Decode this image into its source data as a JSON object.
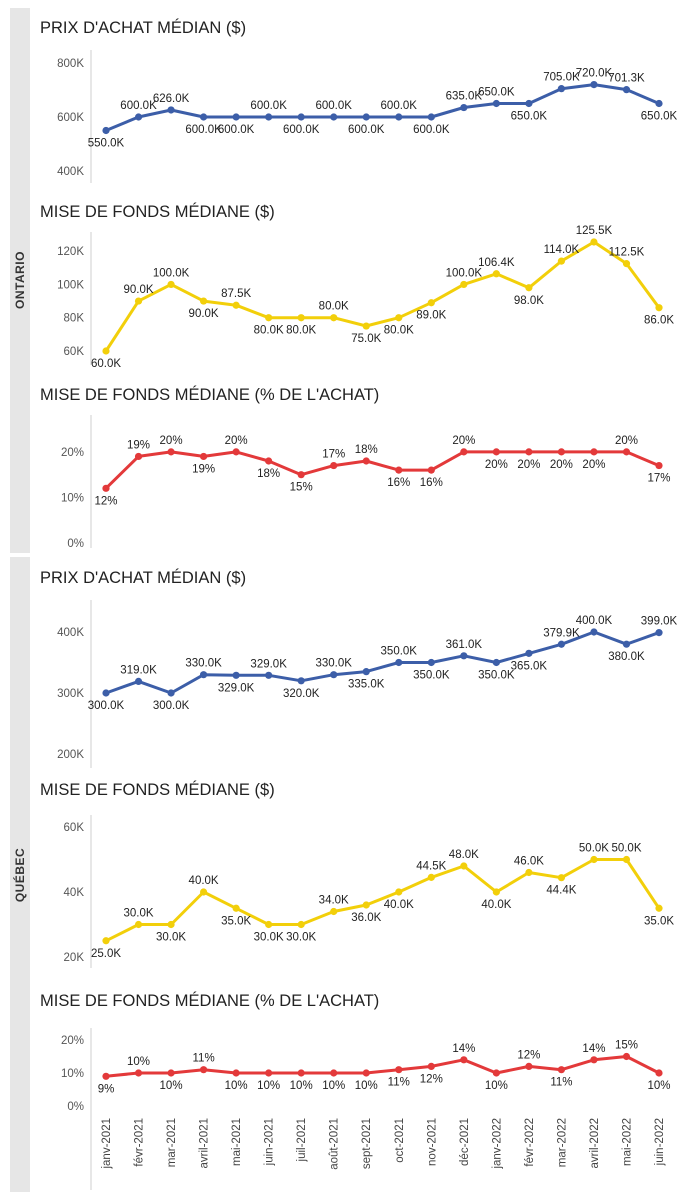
{
  "sections": [
    {
      "name": "ONTARIO"
    },
    {
      "name": "QUÉBEC"
    }
  ],
  "colors": {
    "price": "#3c5ea8",
    "down_amount": "#f2cf0a",
    "down_pct": "#e3393a"
  },
  "chart_data": [
    {
      "type": "line",
      "section": "ONTARIO",
      "title": "PRIX D'ACHAT MÉDIAN ($)",
      "color": "#3c5ea8",
      "x": [
        "janv-2021",
        "févr-2021",
        "mar-2021",
        "avril-2021",
        "mai-2021",
        "juin-2021",
        "juil-2021",
        "août-2021",
        "sept-2021",
        "oct-2021",
        "nov-2021",
        "déc-2021",
        "janv-2022",
        "févr-2022",
        "mar-2022",
        "avril-2022",
        "mai-2022",
        "juin-2022"
      ],
      "values": [
        550,
        600,
        626,
        600,
        600,
        600,
        600,
        600,
        600,
        600,
        600,
        635,
        650,
        650,
        705,
        720,
        701.3,
        650
      ],
      "labels": [
        "550.0K",
        "600.0K",
        "626.0K",
        "600.0K",
        "600.0K",
        "600.0K",
        "600.0K",
        "600.0K",
        "600.0K",
        "600.0K",
        "600.0K",
        "635.0K",
        "650.0K",
        "650.0K",
        "705.0K",
        "720.0K",
        "701.3K",
        "650.0K"
      ],
      "label_pos": [
        "below",
        "above",
        "above",
        "below",
        "below",
        "above",
        "below",
        "above",
        "below",
        "above",
        "below",
        "above",
        "above",
        "below",
        "above",
        "above",
        "above",
        "below"
      ],
      "ylim": [
        400,
        800
      ],
      "yticks": [
        400,
        600,
        800
      ],
      "ytick_labels": [
        "400K",
        "600K",
        "800K"
      ],
      "grid": false
    },
    {
      "type": "line",
      "section": "ONTARIO",
      "title": "MISE DE FONDS MÉDIANE ($)",
      "color": "#f2cf0a",
      "x": [
        "janv-2021",
        "févr-2021",
        "mar-2021",
        "avril-2021",
        "mai-2021",
        "juin-2021",
        "juil-2021",
        "août-2021",
        "sept-2021",
        "oct-2021",
        "nov-2021",
        "déc-2021",
        "janv-2022",
        "févr-2022",
        "mar-2022",
        "avril-2022",
        "mai-2022",
        "juin-2022"
      ],
      "values": [
        60,
        90,
        100,
        90,
        87.5,
        80,
        80,
        80,
        75,
        80,
        89,
        100,
        106.4,
        98,
        114,
        125.5,
        112.5,
        86
      ],
      "labels": [
        "60.0K",
        "90.0K",
        "100.0K",
        "90.0K",
        "87.5K",
        "80.0K",
        "80.0K",
        "80.0K",
        "75.0K",
        "80.0K",
        "89.0K",
        "100.0K",
        "106.4K",
        "98.0K",
        "114.0K",
        "125.5K",
        "112.5K",
        "86.0K"
      ],
      "label_pos": [
        "below",
        "above",
        "above",
        "below",
        "above",
        "below",
        "below",
        "above",
        "below",
        "below",
        "below",
        "above",
        "above",
        "below",
        "above",
        "above",
        "above",
        "below"
      ],
      "ylim": [
        60,
        125.5
      ],
      "yticks": [
        60,
        80,
        100,
        120
      ],
      "ytick_labels": [
        "60K",
        "80K",
        "100K",
        "120K"
      ],
      "grid": false
    },
    {
      "type": "line",
      "section": "ONTARIO",
      "title": "MISE DE FONDS MÉDIANE (% DE L'ACHAT)",
      "color": "#e3393a",
      "x": [
        "janv-2021",
        "févr-2021",
        "mar-2021",
        "avril-2021",
        "mai-2021",
        "juin-2021",
        "juil-2021",
        "août-2021",
        "sept-2021",
        "oct-2021",
        "nov-2021",
        "déc-2021",
        "janv-2022",
        "févr-2022",
        "mar-2022",
        "avril-2022",
        "mai-2022",
        "juin-2022"
      ],
      "values": [
        12,
        19,
        20,
        19,
        20,
        18,
        15,
        17,
        18,
        16,
        16,
        20,
        20,
        20,
        20,
        20,
        20,
        17
      ],
      "labels": [
        "12%",
        "19%",
        "20%",
        "19%",
        "20%",
        "18%",
        "15%",
        "17%",
        "18%",
        "16%",
        "16%",
        "20%",
        "20%",
        "20%",
        "20%",
        "20%",
        "20%",
        "17%"
      ],
      "label_pos": [
        "below",
        "above",
        "above",
        "below",
        "above",
        "below",
        "below",
        "above",
        "above",
        "below",
        "below",
        "above",
        "below",
        "below",
        "below",
        "below",
        "above",
        "below"
      ],
      "ylim": [
        0,
        27
      ],
      "yticks": [
        0,
        10,
        20
      ],
      "ytick_labels": [
        "0%",
        "10%",
        "20%"
      ],
      "grid": false
    },
    {
      "type": "line",
      "section": "QUÉBEC",
      "title": "PRIX D'ACHAT MÉDIAN ($)",
      "color": "#3c5ea8",
      "x": [
        "janv-2021",
        "févr-2021",
        "mar-2021",
        "avril-2021",
        "mai-2021",
        "juin-2021",
        "juil-2021",
        "août-2021",
        "sept-2021",
        "oct-2021",
        "nov-2021",
        "déc-2021",
        "janv-2022",
        "févr-2022",
        "mar-2022",
        "avril-2022",
        "mai-2022",
        "juin-2022"
      ],
      "values": [
        300,
        319,
        300,
        330,
        329,
        329,
        320,
        330,
        335,
        350,
        350,
        361,
        350,
        365,
        379.9,
        400,
        380,
        399
      ],
      "labels": [
        "300.0K",
        "319.0K",
        "300.0K",
        "330.0K",
        "329.0K",
        "329.0K",
        "320.0K",
        "330.0K",
        "335.0K",
        "350.0K",
        "350.0K",
        "361.0K",
        "350.0K",
        "365.0K",
        "379.9K",
        "400.0K",
        "380.0K",
        "399.0K"
      ],
      "label_pos": [
        "below",
        "above",
        "below",
        "above",
        "below",
        "above",
        "below",
        "above",
        "below",
        "above",
        "below",
        "above",
        "below",
        "below",
        "above",
        "above",
        "below",
        "above"
      ],
      "ylim": [
        200,
        400
      ],
      "yticks": [
        200,
        300,
        400
      ],
      "ytick_labels": [
        "200K",
        "300K",
        "400K"
      ],
      "grid": false
    },
    {
      "type": "line",
      "section": "QUÉBEC",
      "title": "MISE DE FONDS MÉDIANE ($)",
      "color": "#f2cf0a",
      "x": [
        "janv-2021",
        "févr-2021",
        "mar-2021",
        "avril-2021",
        "mai-2021",
        "juin-2021",
        "juil-2021",
        "août-2021",
        "sept-2021",
        "oct-2021",
        "nov-2021",
        "déc-2021",
        "janv-2022",
        "févr-2022",
        "mar-2022",
        "avril-2022",
        "mai-2022",
        "juin-2022"
      ],
      "values": [
        25,
        30,
        30,
        40,
        35,
        30,
        30,
        34,
        36,
        40,
        44.5,
        48,
        40,
        46,
        44.4,
        50,
        50,
        35
      ],
      "labels": [
        "25.0K",
        "30.0K",
        "30.0K",
        "40.0K",
        "35.0K",
        "30.0K",
        "30.0K",
        "34.0K",
        "36.0K",
        "40.0K",
        "44.5K",
        "48.0K",
        "40.0K",
        "46.0K",
        "44.4K",
        "50.0K",
        "50.0K",
        "35.0K"
      ],
      "label_pos": [
        "below",
        "above",
        "below",
        "above",
        "below",
        "below",
        "below",
        "above",
        "below",
        "below",
        "above",
        "above",
        "below",
        "above",
        "below",
        "above",
        "above",
        "below"
      ],
      "ylim": [
        20,
        60
      ],
      "yticks": [
        20,
        40,
        60
      ],
      "ytick_labels": [
        "20K",
        "40K",
        "60K"
      ],
      "grid": false
    },
    {
      "type": "line",
      "section": "QUÉBEC",
      "title": "MISE DE FONDS MÉDIANE (% DE L'ACHAT)",
      "color": "#e3393a",
      "x": [
        "janv-2021",
        "févr-2021",
        "mar-2021",
        "avril-2021",
        "mai-2021",
        "juin-2021",
        "juil-2021",
        "août-2021",
        "sept-2021",
        "oct-2021",
        "nov-2021",
        "déc-2021",
        "janv-2022",
        "févr-2022",
        "mar-2022",
        "avril-2022",
        "mai-2022",
        "juin-2022"
      ],
      "values": [
        9,
        10,
        10,
        11,
        10,
        10,
        10,
        10,
        10,
        11,
        12,
        14,
        10,
        12,
        11,
        14,
        15,
        10
      ],
      "labels": [
        "9%",
        "10%",
        "10%",
        "11%",
        "10%",
        "10%",
        "10%",
        "10%",
        "10%",
        "11%",
        "12%",
        "14%",
        "10%",
        "12%",
        "11%",
        "14%",
        "15%",
        "10%"
      ],
      "label_pos": [
        "below",
        "above",
        "below",
        "above",
        "below",
        "below",
        "below",
        "below",
        "below",
        "below",
        "below",
        "above",
        "below",
        "above",
        "below",
        "above",
        "above",
        "below"
      ],
      "ylim": [
        0,
        20
      ],
      "yticks": [
        0,
        10,
        20
      ],
      "ytick_labels": [
        "0%",
        "10%",
        "20%"
      ],
      "grid": false
    }
  ]
}
